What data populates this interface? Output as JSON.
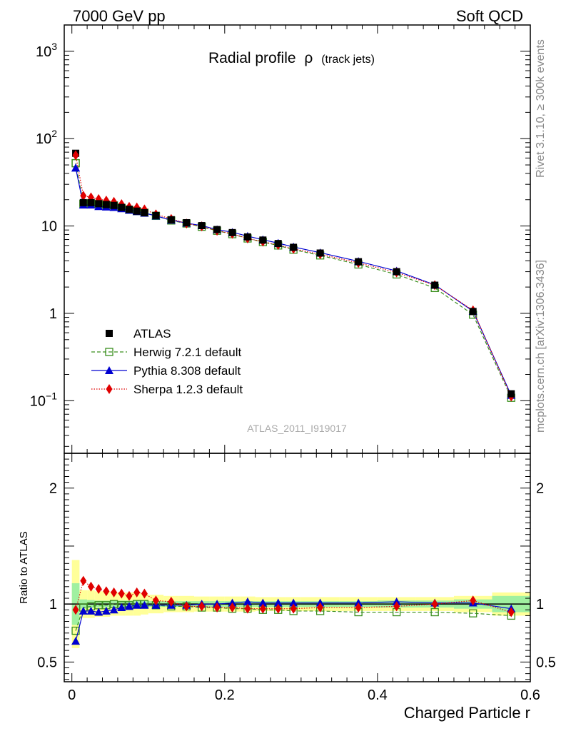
{
  "header": {
    "left": "7000 GeV pp",
    "right": "Soft QCD"
  },
  "side": {
    "rivet": "Rivet 3.1.10, ≥ 300k events",
    "mcplots": "mcplots.cern.ch [arXiv:1306.3436]"
  },
  "chart_data": {
    "type": "line",
    "title": "Radial profile",
    "title_symbol": "ρ",
    "title_suffix": "(track jets)",
    "analysis_id": "ATLAS_2011_I919017",
    "xlabel": "Charged Particle r",
    "ratio_ylabel": "Ratio to ATLAS",
    "xlim": [
      -0.01,
      0.6
    ],
    "ylim": [
      0.025,
      2000
    ],
    "yscale": "log",
    "ratio_ylim": [
      0.33,
      2.3
    ],
    "x_ticks": [
      "0",
      "0.2",
      "0.4",
      "0.6"
    ],
    "y_ticks": [
      "10^-1",
      "1",
      "10",
      "10^2",
      "10^3"
    ],
    "ratio_ticks": [
      "0.5",
      "1",
      "2"
    ],
    "x": [
      0.005,
      0.015,
      0.025,
      0.035,
      0.045,
      0.055,
      0.065,
      0.075,
      0.085,
      0.095,
      0.11,
      0.13,
      0.15,
      0.17,
      0.19,
      0.21,
      0.23,
      0.25,
      0.27,
      0.29,
      0.325,
      0.375,
      0.425,
      0.475,
      0.525,
      0.575
    ],
    "bin_edges": [
      0,
      0.01,
      0.02,
      0.03,
      0.04,
      0.05,
      0.06,
      0.07,
      0.08,
      0.09,
      0.1,
      0.12,
      0.14,
      0.16,
      0.18,
      0.2,
      0.22,
      0.24,
      0.26,
      0.28,
      0.3,
      0.35,
      0.4,
      0.45,
      0.5,
      0.55,
      0.6
    ],
    "series": [
      {
        "name": "ATLAS",
        "color": "#000000",
        "marker": "square-filled",
        "values": [
          68,
          18.5,
          18.5,
          18,
          17.6,
          17.2,
          16.3,
          15.5,
          14.8,
          14.2,
          13.2,
          11.8,
          10.9,
          10.1,
          9.1,
          8.4,
          7.5,
          6.9,
          6.3,
          5.7,
          4.9,
          3.9,
          3.0,
          2.1,
          1.05,
          0.12
        ]
      },
      {
        "name": "Herwig 7.2.1 default",
        "color": "#3a8f1e",
        "marker": "square-open",
        "dash": "5,3",
        "ratio": [
          0.77,
          0.97,
          0.98,
          0.99,
          0.99,
          1.0,
          0.99,
          0.99,
          1.0,
          1.0,
          0.99,
          0.98,
          0.98,
          0.97,
          0.97,
          0.96,
          0.96,
          0.95,
          0.95,
          0.94,
          0.94,
          0.93,
          0.93,
          0.93,
          0.92,
          0.9
        ]
      },
      {
        "name": "Pythia 8.308 default",
        "color": "#0000d0",
        "marker": "triangle",
        "ratio": [
          0.68,
          0.94,
          0.94,
          0.93,
          0.94,
          0.95,
          0.97,
          0.98,
          0.99,
          0.99,
          0.99,
          0.99,
          0.99,
          1.0,
          1.0,
          1.01,
          1.02,
          1.01,
          1.01,
          1.01,
          1.01,
          1.01,
          1.02,
          1.01,
          1.01,
          0.96
        ]
      },
      {
        "name": "Sherpa 1.2.3 default",
        "color": "#e00000",
        "marker": "diamond",
        "dash": "1.5,2",
        "ratio": [
          0.95,
          1.2,
          1.15,
          1.13,
          1.11,
          1.1,
          1.09,
          1.07,
          1.1,
          1.09,
          1.03,
          1.02,
          0.98,
          0.98,
          0.97,
          0.97,
          0.96,
          0.96,
          0.96,
          0.96,
          0.97,
          0.97,
          0.98,
          1.0,
          1.03,
          0.93
        ]
      }
    ],
    "data_uncertainty": {
      "inner_color": "#a0f0a0",
      "outer_color": "#ffff99",
      "stat_rel": [
        0.18,
        0.04,
        0.035,
        0.03,
        0.03,
        0.03,
        0.03,
        0.03,
        0.03,
        0.03,
        0.025,
        0.025,
        0.025,
        0.025,
        0.025,
        0.025,
        0.025,
        0.025,
        0.025,
        0.025,
        0.025,
        0.025,
        0.03,
        0.03,
        0.04,
        0.07
      ],
      "total_rel": [
        0.38,
        0.12,
        0.12,
        0.11,
        0.11,
        0.1,
        0.1,
        0.1,
        0.1,
        0.09,
        0.08,
        0.07,
        0.07,
        0.065,
        0.065,
        0.065,
        0.065,
        0.06,
        0.06,
        0.06,
        0.06,
        0.06,
        0.06,
        0.06,
        0.07,
        0.1
      ]
    }
  }
}
